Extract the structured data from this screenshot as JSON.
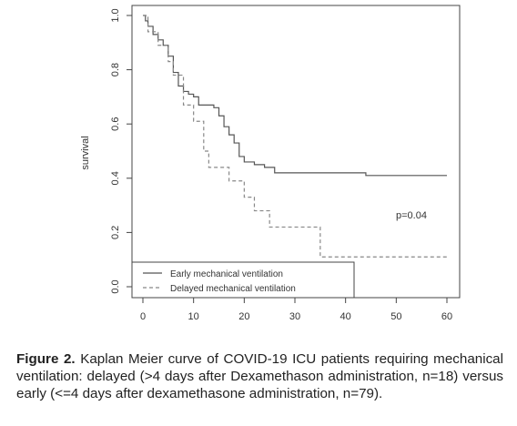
{
  "chart_data": {
    "type": "line",
    "subtype": "step",
    "ylabel": "survival",
    "xlabel": "",
    "xlim": [
      0,
      60
    ],
    "ylim": [
      0,
      1
    ],
    "x_ticks": [
      0,
      10,
      20,
      30,
      40,
      50,
      60
    ],
    "y_ticks": [
      "0.0",
      "0.2",
      "0.4",
      "0.6",
      "0.8",
      "1.0"
    ],
    "grid": false,
    "legend": "bottom-left",
    "annotation": "p=0.04",
    "series": [
      {
        "name": "Early mechanical ventilation",
        "style": "solid",
        "color": "#555555",
        "x": [
          0,
          0.5,
          1,
          2,
          3,
          4,
          5,
          6,
          7,
          8,
          9,
          10,
          11,
          14,
          15,
          16,
          17,
          18,
          19,
          20,
          22,
          24,
          26,
          44,
          60
        ],
        "y": [
          1.0,
          0.98,
          0.96,
          0.93,
          0.91,
          0.89,
          0.85,
          0.79,
          0.74,
          0.72,
          0.71,
          0.7,
          0.67,
          0.66,
          0.63,
          0.59,
          0.56,
          0.53,
          0.48,
          0.46,
          0.45,
          0.44,
          0.42,
          0.41,
          0.41
        ]
      },
      {
        "name": "Delayed mechanical ventilation",
        "style": "dashed",
        "color": "#888888",
        "x": [
          0,
          1,
          3,
          5,
          6,
          8,
          10,
          12,
          13,
          17,
          20,
          22,
          25,
          35,
          60
        ],
        "y": [
          1.0,
          0.94,
          0.89,
          0.83,
          0.78,
          0.67,
          0.61,
          0.5,
          0.44,
          0.39,
          0.33,
          0.28,
          0.22,
          0.11,
          0.11
        ]
      }
    ]
  },
  "caption": {
    "label": "Figure 2.",
    "text": " Kaplan Meier curve of COVID-19 ICU patients requiring mechanical ventilation: delayed (>4 days after Dexamethason administration, n=18) versus early (<=4 days after dexamethasone administration, n=79)."
  }
}
